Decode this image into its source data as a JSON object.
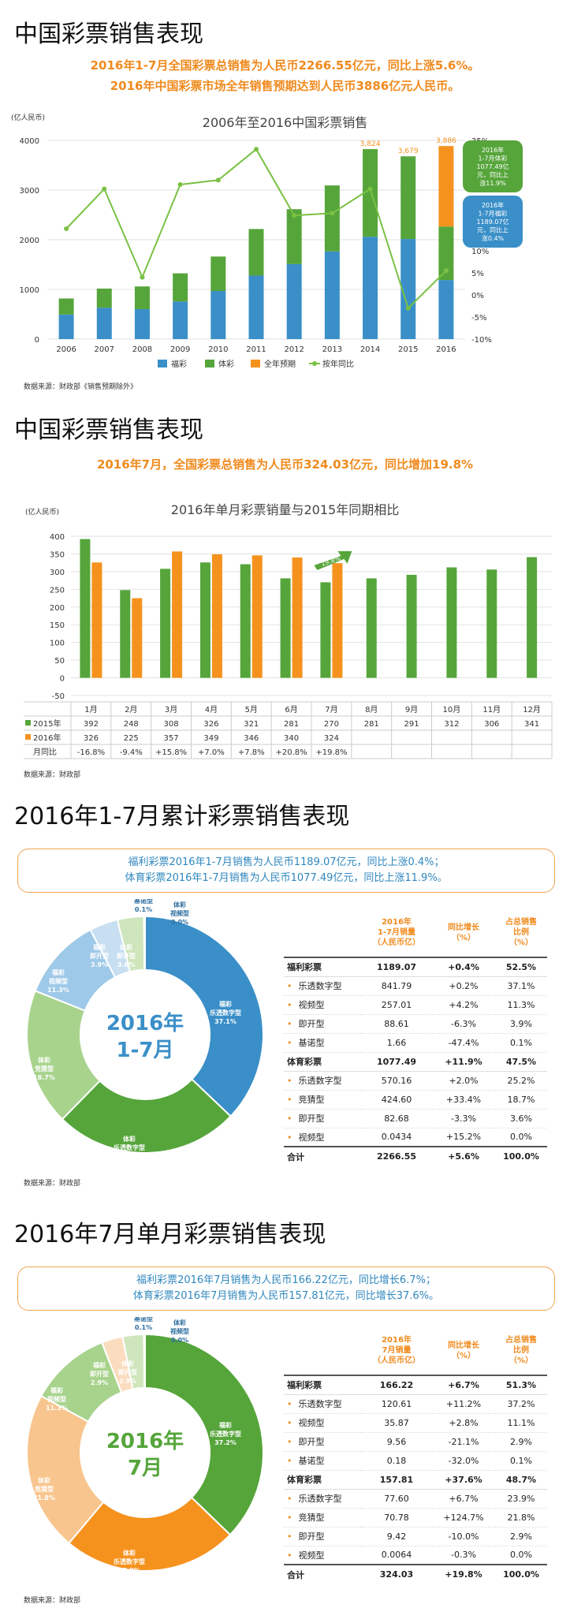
{
  "section1": {
    "title": "中国彩票销售表现",
    "line1": "2016年1-7月全国彩票总销售为人民币2266.55亿元，同比上涨5.6%。",
    "line2": "2016年中国彩票市场全年销售预期达到人民币3886亿元人民币。",
    "source": "数据来源：财政部《销售预期除外》"
  },
  "section2": {
    "title": "中国彩票销售表现",
    "line1": "2016年7月，全国彩票总销售为人民币324.03亿元，同比增加19.8%",
    "source": "数据来源：财政部"
  },
  "section3": {
    "title": "2016年1-7月累计彩票销售表现",
    "note1": "福利彩票2016年1-7月销售为人民币1189.07亿元，同比上涨0.4%；",
    "note2": "体育彩票2016年1-7月销售为人民币1077.49亿元，同比上涨11.9%。",
    "center1": "2016年",
    "center2": "1-7月",
    "source": "数据来源：财政部",
    "table_headers": [
      "",
      "2016年\n1-7月销量\n（人民币亿）",
      "同比增长\n（%）",
      "占总销售\n比例\n（%）"
    ],
    "rows": [
      {
        "label": "福利彩票",
        "sales": "1189.07",
        "growth": "+0.4%",
        "share": "52.5%",
        "kind": "group"
      },
      {
        "label": "乐透数字型",
        "sales": "841.79",
        "growth": "+0.2%",
        "share": "37.1%",
        "kind": "sub"
      },
      {
        "label": "视频型",
        "sales": "257.01",
        "growth": "+4.2%",
        "share": "11.3%",
        "kind": "sub"
      },
      {
        "label": "即开型",
        "sales": "88.61",
        "growth": "-6.3%",
        "share": "3.9%",
        "kind": "sub"
      },
      {
        "label": "基诺型",
        "sales": "1.66",
        "growth": "-47.4%",
        "share": "0.1%",
        "kind": "sub"
      },
      {
        "label": "体育彩票",
        "sales": "1077.49",
        "growth": "+11.9%",
        "share": "47.5%",
        "kind": "group"
      },
      {
        "label": "乐透数字型",
        "sales": "570.16",
        "growth": "+2.0%",
        "share": "25.2%",
        "kind": "sub"
      },
      {
        "label": "竞猜型",
        "sales": "424.60",
        "growth": "+33.4%",
        "share": "18.7%",
        "kind": "sub"
      },
      {
        "label": "即开型",
        "sales": "82.68",
        "growth": "-3.3%",
        "share": "3.6%",
        "kind": "sub"
      },
      {
        "label": "视频型",
        "sales": "0.0434",
        "growth": "+15.2%",
        "share": "0.0%",
        "kind": "sub"
      },
      {
        "label": "合计",
        "sales": "2266.55",
        "growth": "+5.6%",
        "share": "100.0%",
        "kind": "total"
      }
    ]
  },
  "section4": {
    "title": "2016年7月单月彩票销售表现",
    "note1": "福利彩票2016年7月销售为人民币166.22亿元，同比增长6.7%；",
    "note2": "体育彩票2016年7月销售为人民币157.81亿元，同比增长37.6%。",
    "center1": "2016年",
    "center2": "7月",
    "source": "数据来源：财政部",
    "table_headers": [
      "",
      "2016年\n7月销量\n（人民币亿）",
      "同比增长\n（%）",
      "占总销售\n比例\n（%）"
    ],
    "rows": [
      {
        "label": "福利彩票",
        "sales": "166.22",
        "growth": "+6.7%",
        "share": "51.3%",
        "kind": "group"
      },
      {
        "label": "乐透数字型",
        "sales": "120.61",
        "growth": "+11.2%",
        "share": "37.2%",
        "kind": "sub"
      },
      {
        "label": "视频型",
        "sales": "35.87",
        "growth": "+2.8%",
        "share": "11.1%",
        "kind": "sub"
      },
      {
        "label": "即开型",
        "sales": "9.56",
        "growth": "-21.1%",
        "share": "2.9%",
        "kind": "sub"
      },
      {
        "label": "基诺型",
        "sales": "0.18",
        "growth": "-32.0%",
        "share": "0.1%",
        "kind": "sub"
      },
      {
        "label": "体育彩票",
        "sales": "157.81",
        "growth": "+37.6%",
        "share": "48.7%",
        "kind": "group"
      },
      {
        "label": "乐透数字型",
        "sales": "77.60",
        "growth": "+6.7%",
        "share": "23.9%",
        "kind": "sub"
      },
      {
        "label": "竞猜型",
        "sales": "70.78",
        "growth": "+124.7%",
        "share": "21.8%",
        "kind": "sub"
      },
      {
        "label": "即开型",
        "sales": "9.42",
        "growth": "-10.0%",
        "share": "2.9%",
        "kind": "sub"
      },
      {
        "label": "视频型",
        "sales": "0.0064",
        "growth": "-0.3%",
        "share": "0.0%",
        "kind": "sub"
      },
      {
        "label": "合计",
        "sales": "324.03",
        "growth": "+19.8%",
        "share": "100.0%",
        "kind": "total"
      }
    ]
  },
  "chart_data": [
    {
      "type": "bar",
      "title": "2006年至2016中国彩票销售",
      "ylabel": "(亿人民币)",
      "ylim": [
        0,
        4000
      ],
      "y2lim": [
        -10,
        35
      ],
      "y2_ticks": [
        "-10%",
        "-5%",
        "0%",
        "5%",
        "10%",
        "15%",
        "20%",
        "25%",
        "30%",
        "35%"
      ],
      "stacked": true,
      "categories": [
        "2006",
        "2007",
        "2008",
        "2009",
        "2010",
        "2011",
        "2012",
        "2013",
        "2014",
        "2015",
        "2016"
      ],
      "series": [
        {
          "name": "福彩",
          "color": "#3a8fc8",
          "values": [
            495,
            632,
            604,
            756,
            968,
            1278,
            1510,
            1765,
            2060,
            2015,
            1189
          ]
        },
        {
          "name": "体彩",
          "color": "#56a53b",
          "values": [
            323,
            385,
            456,
            568,
            694,
            938,
            1105,
            1328,
            1764,
            1664,
            1077
          ]
        },
        {
          "name": "全年预期",
          "color": "#f5921e",
          "values": [
            0,
            0,
            0,
            0,
            0,
            0,
            0,
            0,
            0,
            0,
            1620
          ]
        },
        {
          "name": "按年同比",
          "color": "#7ac143",
          "type": "line",
          "axis": "right",
          "values": [
            15,
            24,
            4,
            25,
            26,
            33,
            18,
            18.5,
            24,
            -3,
            5.5
          ]
        }
      ],
      "data_labels": [
        {
          "category": "2014",
          "text": "3,824"
        },
        {
          "category": "2015",
          "text": "3,679"
        },
        {
          "category": "2016",
          "text": "3,886"
        }
      ],
      "callouts": [
        {
          "text": "2016年\n1-7月体彩\n1077.49亿\n元，同比上\n涨11.9%",
          "color": "#56a53b"
        },
        {
          "text": "2016年\n1-7月福彩\n1189.07亿\n元，同比上\n涨0.4%",
          "color": "#3a8fc8"
        }
      ],
      "legend": "bottom"
    },
    {
      "type": "bar",
      "title": "2016年单月彩票销量与2015年同期相比",
      "ylabel": "(亿人民币)",
      "ylim": [
        -50,
        400
      ],
      "categories": [
        "1月",
        "2月",
        "3月",
        "4月",
        "5月",
        "6月",
        "7月",
        "8月",
        "9月",
        "10月",
        "11月",
        "12月"
      ],
      "series": [
        {
          "name": "2015年",
          "color": "#56a53b",
          "values": [
            392,
            248,
            308,
            326,
            321,
            281,
            270,
            281,
            291,
            312,
            306,
            341
          ]
        },
        {
          "name": "2016年",
          "color": "#f5921e",
          "values": [
            326,
            225,
            357,
            349,
            346,
            340,
            324,
            null,
            null,
            null,
            null,
            null
          ]
        }
      ],
      "table_row_label": "月同比",
      "yoy": [
        "-16.8%",
        "-9.4%",
        "+15.8%",
        "+7.0%",
        "+7.8%",
        "+20.8%",
        "+19.8%",
        "",
        "",
        "",
        "",
        ""
      ],
      "arrow_label": "19.8%"
    },
    {
      "type": "pie",
      "title": "",
      "slices": [
        {
          "label": "福彩\n乐透数字型\n37.1%",
          "value": 37.1,
          "color": "#3a8fc8"
        },
        {
          "label": "体彩\n乐透数字型\n25.2%",
          "value": 25.2,
          "color": "#56a53b"
        },
        {
          "label": "体彩\n竞猜型\n18.7%",
          "value": 18.7,
          "color": "#a8d38d"
        },
        {
          "label": "福彩\n视频型\n11.3%",
          "value": 11.3,
          "color": "#9fc9e8"
        },
        {
          "label": "福彩\n即开型\n3.9%",
          "value": 3.9,
          "color": "#c7dff1"
        },
        {
          "label": "体彩\n即开型\n3.6%",
          "value": 3.6,
          "color": "#cfe6bd"
        },
        {
          "label": "福彩\n基诺型\n0.1%",
          "value": 0.1,
          "color": "#2f6fa0"
        },
        {
          "label": "体彩\n视频型\n0.0%",
          "value": 0.05,
          "color": "#e0eef8"
        }
      ]
    },
    {
      "type": "pie",
      "title": "",
      "slices": [
        {
          "label": "福彩\n乐透数字型\n37.2%",
          "value": 37.2,
          "color": "#56a53b"
        },
        {
          "label": "体彩\n乐透数字型\n23.9%",
          "value": 23.9,
          "color": "#f5921e"
        },
        {
          "label": "体彩\n竞猜型\n21.8%",
          "value": 21.8,
          "color": "#f8c58e"
        },
        {
          "label": "福彩\n视频型\n11.1%",
          "value": 11.1,
          "color": "#a8d38d"
        },
        {
          "label": "福彩\n即开型\n2.9%",
          "value": 2.9,
          "color": "#fbdcbf"
        },
        {
          "label": "体彩\n即开型\n2.9%",
          "value": 2.9,
          "color": "#cfe6bd"
        },
        {
          "label": "福彩\n基诺型\n0.1%",
          "value": 0.1,
          "color": "#2e7d32"
        },
        {
          "label": "体彩\n视频型\n0.0%",
          "value": 0.05,
          "color": "#e8f3df"
        }
      ]
    }
  ]
}
